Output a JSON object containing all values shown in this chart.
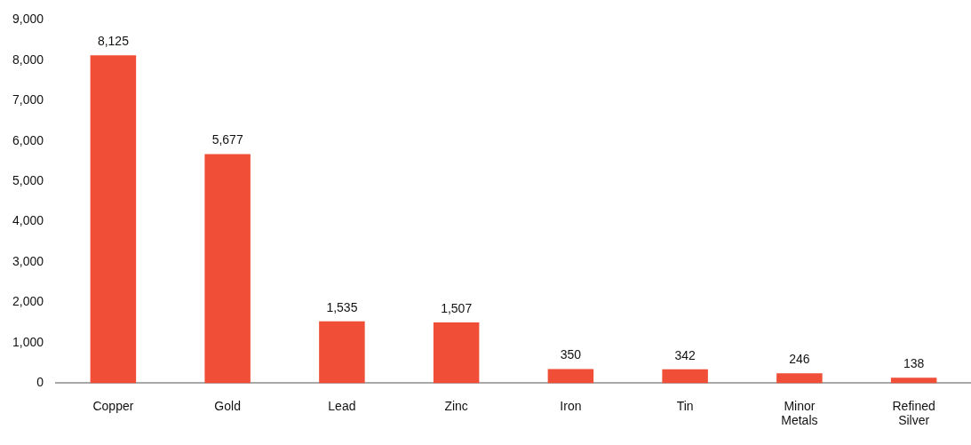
{
  "chart_data": {
    "type": "bar",
    "categories": [
      "Copper",
      "Gold",
      "Lead",
      "Zinc",
      "Iron",
      "Tin",
      "Minor Metals",
      "Refined Silver"
    ],
    "values": [
      8125,
      5677,
      1535,
      1507,
      350,
      342,
      246,
      138
    ],
    "color": "#f04e37",
    "value_labels": [
      "8,125",
      "5,677",
      "1,535",
      "1,507",
      "350",
      "342",
      "246",
      "138"
    ],
    "ylim": [
      0,
      9000
    ],
    "yticks": [
      0,
      {
        "value": 1000,
        "label": "1,000"
      },
      {
        "value": 2000,
        "label": "2,000"
      },
      {
        "value": 3000,
        "label": "3,000"
      },
      {
        "value": 4000,
        "label": "4,000"
      },
      {
        "value": 5000,
        "label": "5,000"
      },
      {
        "value": 6000,
        "label": "6,000"
      },
      {
        "value": 7000,
        "label": "7,000"
      },
      {
        "value": 8000,
        "label": "8,000"
      },
      {
        "value": 9000,
        "label": "9,000"
      }
    ],
    "grid": false,
    "legend": false
  }
}
